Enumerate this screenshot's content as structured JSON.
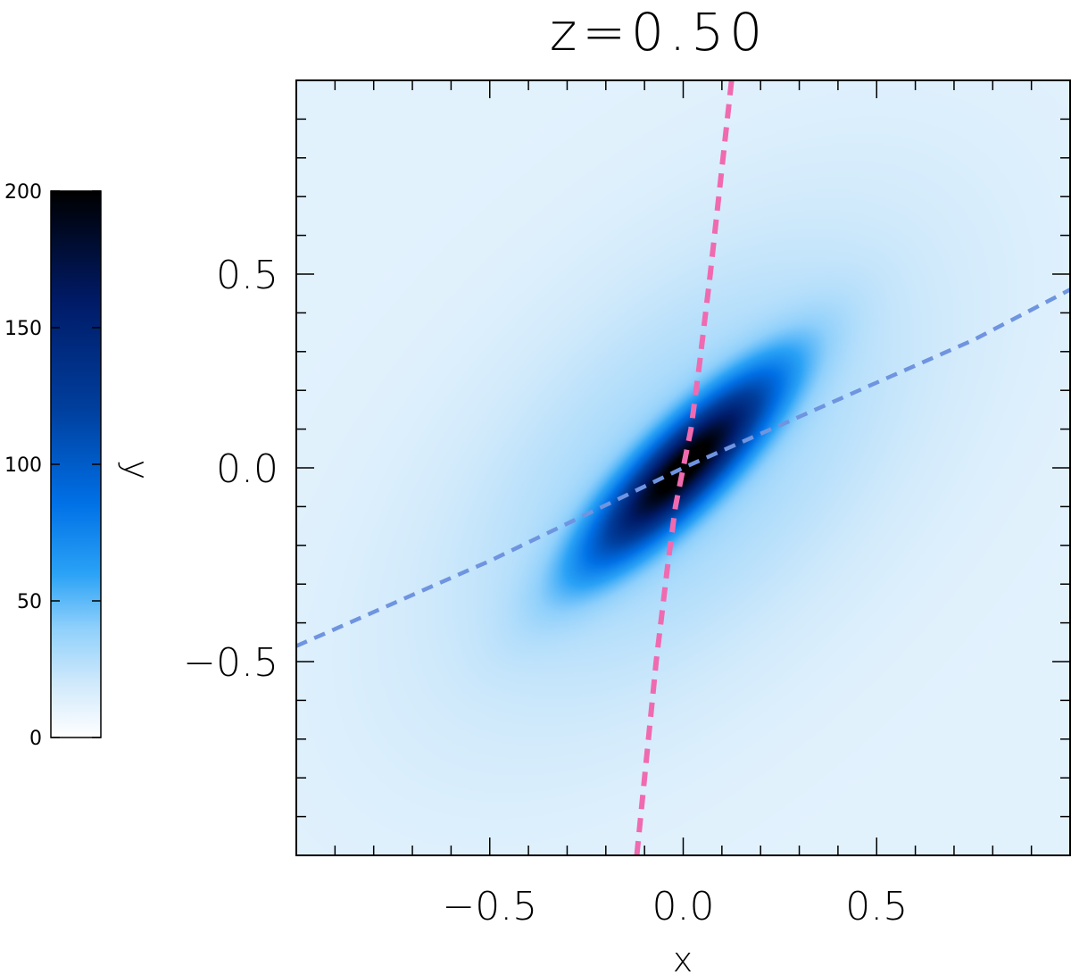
{
  "chart_data": {
    "type": "heatmap",
    "title": "z=0.50",
    "xlabel": "x",
    "ylabel": "",
    "xlim": [
      -1.0,
      1.0
    ],
    "ylim": [
      -1.0,
      1.0
    ],
    "x_ticks": [
      -0.5,
      0.0,
      0.5
    ],
    "x_tick_labels": [
      "−0.5",
      "0.0",
      "0.5"
    ],
    "y_ticks": [
      -0.5,
      0.0,
      0.5
    ],
    "y_tick_labels": [
      "−0.5",
      "0.0",
      "0.5"
    ],
    "minor_tick_step": 0.1,
    "grid": false,
    "field": {
      "center": [
        0.0,
        0.0
      ],
      "major_axis_angle_deg": 45,
      "sigma_major": 0.22,
      "sigma_minor": 0.06,
      "halo_sigma_major": 0.55,
      "halo_sigma_minor": 0.3,
      "halo_fraction": 0.12,
      "peak": 200
    },
    "colorbar": {
      "label": "y",
      "range": [
        0,
        200
      ],
      "ticks": [
        0,
        50,
        100,
        150,
        200
      ],
      "tick_labels": [
        "0",
        "50",
        "100",
        "150",
        "200"
      ],
      "colors": [
        "#ffffff",
        "#cfe9fb",
        "#8fd0fb",
        "#2aa2f6",
        "#0070e6",
        "#003f9e",
        "#001a66",
        "#000000"
      ],
      "stops": [
        0.0,
        0.1,
        0.2,
        0.3,
        0.43,
        0.6,
        0.8,
        1.0
      ]
    },
    "series": [
      {
        "color": "#f06ab0",
        "style": "dashed",
        "x": [
          -0.12,
          -0.07,
          -0.04,
          -0.02,
          0.0,
          0.02,
          0.04,
          0.07,
          0.125
        ],
        "y": [
          -1.0,
          -0.5,
          -0.25,
          -0.1,
          0.0,
          0.1,
          0.25,
          0.5,
          1.0
        ]
      },
      {
        "color": "#6f94e0",
        "style": "dashed",
        "x": [
          -1.0,
          -0.75,
          -0.5,
          -0.25,
          0.0,
          0.25,
          0.5,
          0.75,
          1.0
        ],
        "y": [
          -0.46,
          -0.35,
          -0.24,
          -0.12,
          0.0,
          0.11,
          0.22,
          0.33,
          0.46
        ]
      }
    ]
  }
}
